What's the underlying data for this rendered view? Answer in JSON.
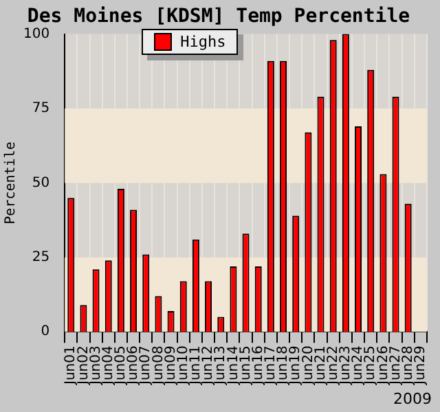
{
  "chart_data": {
    "type": "bar",
    "title": "Des Moines [KDSM] Temp Percentile",
    "ylabel": "Percentile",
    "categories": [
      "Jun01",
      "Jun02",
      "Jun03",
      "Jun04",
      "Jun05",
      "Jun06",
      "Jun07",
      "Jun08",
      "Jun09",
      "Jun10",
      "Jun11",
      "Jun12",
      "Jun13",
      "Jun14",
      "Jun15",
      "Jun16",
      "Jun17",
      "Jun18",
      "Jun19",
      "Jun20",
      "Jun21",
      "Jun22",
      "Jun23",
      "Jun24",
      "Jun25",
      "Jun26",
      "Jun27",
      "Jun28",
      "Jun29"
    ],
    "series": [
      {
        "name": "Highs",
        "color": "#ff0000",
        "values": [
          45,
          9,
          21,
          24,
          48,
          41,
          26,
          12,
          7,
          17,
          31,
          17,
          5,
          22,
          33,
          22,
          91,
          91,
          39,
          67,
          79,
          98,
          100,
          69,
          88,
          53,
          79,
          43,
          null
        ]
      }
    ],
    "ylim": [
      0,
      100
    ],
    "yticks": [
      0,
      25,
      50,
      75,
      100
    ],
    "grid": "x",
    "legend": "top left",
    "bands": [
      {
        "axis": "y",
        "from": 0,
        "to": 25,
        "color": "#f2e6d4"
      },
      {
        "axis": "y",
        "from": 50,
        "to": 75,
        "color": "#f2e6d4"
      }
    ],
    "annotations": [
      "2009"
    ]
  }
}
